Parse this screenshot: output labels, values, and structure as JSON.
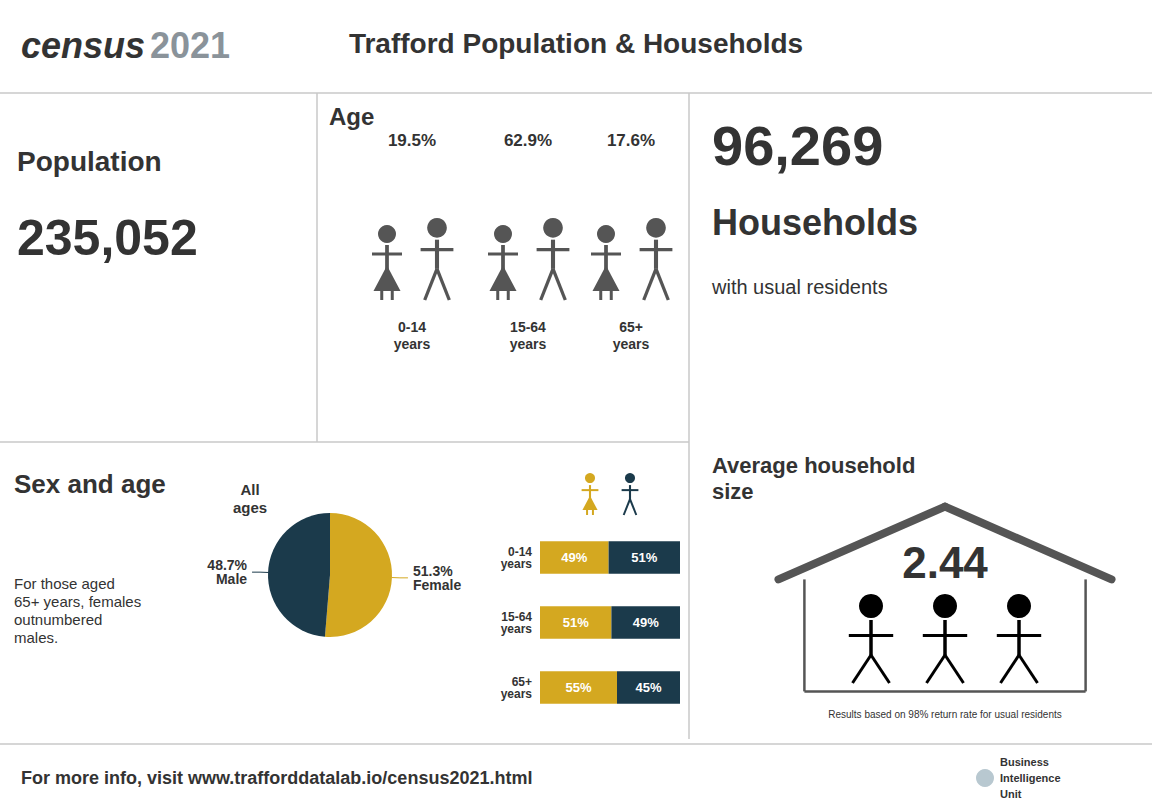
{
  "chart_data": [
    {
      "type": "pie",
      "title": "Trafford Population & Households",
      "categories": [
        "Female",
        "Male"
      ],
      "values": [
        51.3,
        48.7
      ],
      "value_labels": [
        "51.3%",
        "48.7%"
      ],
      "colors": [
        "#d4a820",
        "#1b3a4b"
      ],
      "data_labels": true,
      "annotations": [
        "census",
        "2021",
        "Population",
        "235,052",
        "Age",
        "19.5%",
        "62.9%",
        "17.6%",
        "0-14\nyears",
        "15-64\nyears",
        "65+\nyears",
        "96,269",
        "Households",
        "with usual residents",
        "Sex and age",
        "For those aged\n65+ years, females\noutnumbered\nmales.",
        "All\nages",
        "Average household\nsize",
        "2.44",
        "Results based on 98% return rate for usual residents",
        "For more info, visit www.trafforddatalab.io/census2021.html",
        "Business",
        "Intelligence",
        "Unit"
      ]
    },
    {
      "type": "bar",
      "orientation": "horizontal",
      "stacked": true,
      "categories": [
        "0-14\nyears",
        "15-64\nyears",
        "65+\nyears"
      ],
      "series": [
        {
          "color": "#d4a820",
          "values": [
            49,
            51,
            55
          ],
          "value_labels": [
            "49%",
            "51%",
            "55%"
          ]
        },
        {
          "color": "#1b3a4b",
          "values": [
            51,
            49,
            45
          ],
          "value_labels": [
            "51%",
            "49%",
            "45%"
          ]
        }
      ],
      "xlim": [
        0,
        100
      ],
      "xticks": [
        0,
        50,
        100
      ],
      "tick_labels": "y",
      "grid": false,
      "data_labels": true
    }
  ]
}
